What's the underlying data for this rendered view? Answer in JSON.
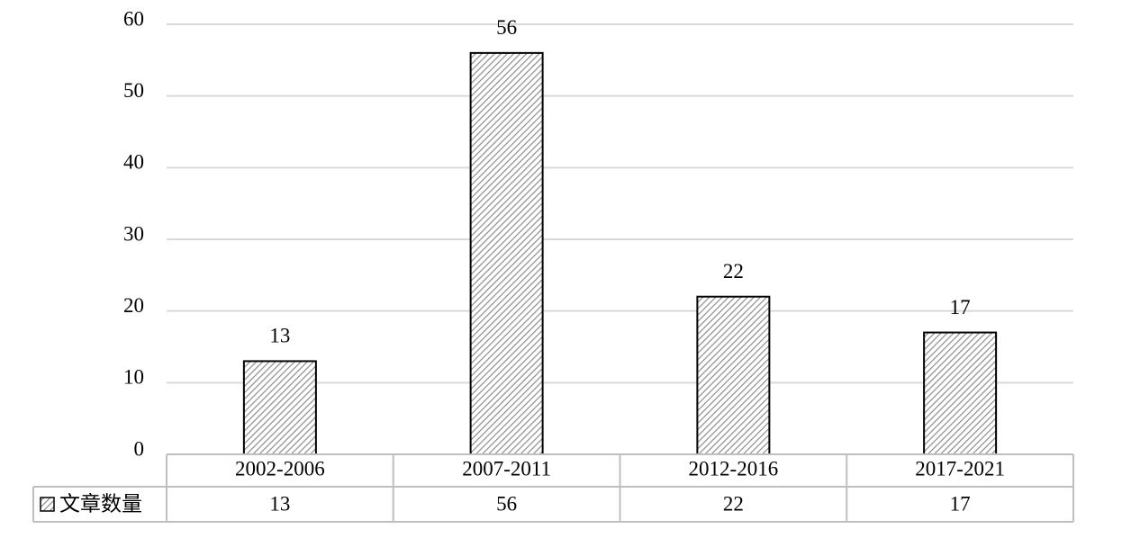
{
  "chart_data": {
    "type": "bar",
    "categories": [
      "2002-2006",
      "2007-2011",
      "2012-2016",
      "2017-2021"
    ],
    "series": [
      {
        "name": "文章数量",
        "color": "#8c8c8c",
        "values": [
          13,
          56,
          22,
          17
        ]
      }
    ],
    "ylim": [
      0,
      60
    ],
    "yticks": [
      0,
      10,
      20,
      30,
      40,
      50,
      60
    ],
    "grid": true,
    "data_table": true
  }
}
